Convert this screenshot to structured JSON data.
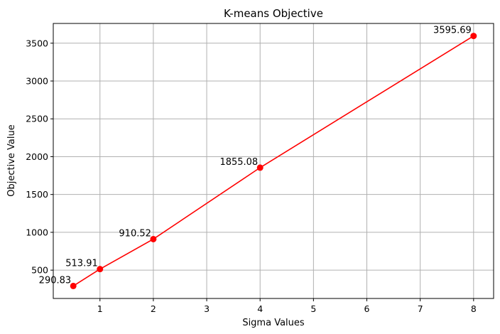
{
  "chart_data": {
    "type": "line",
    "title": "K-means Objective",
    "xlabel": "Sigma Values",
    "ylabel": "Objective Value",
    "x": [
      0.5,
      1,
      2,
      4,
      8
    ],
    "series": [
      {
        "values": [
          290.83,
          513.91,
          910.52,
          1855.08,
          3595.69
        ],
        "data_labels": [
          "290.83",
          "513.91",
          "910.52",
          "1855.08",
          "3595.69"
        ],
        "color": "#ff0000",
        "marker": "circle"
      }
    ],
    "xlim": [
      0.125,
      8.375
    ],
    "ylim": [
      125.6,
      3760.9
    ],
    "xticks": [
      1,
      2,
      3,
      4,
      5,
      6,
      7,
      8
    ],
    "yticks": [
      500,
      1000,
      1500,
      2000,
      2500,
      3000,
      3500
    ],
    "grid": true,
    "legend": false
  }
}
